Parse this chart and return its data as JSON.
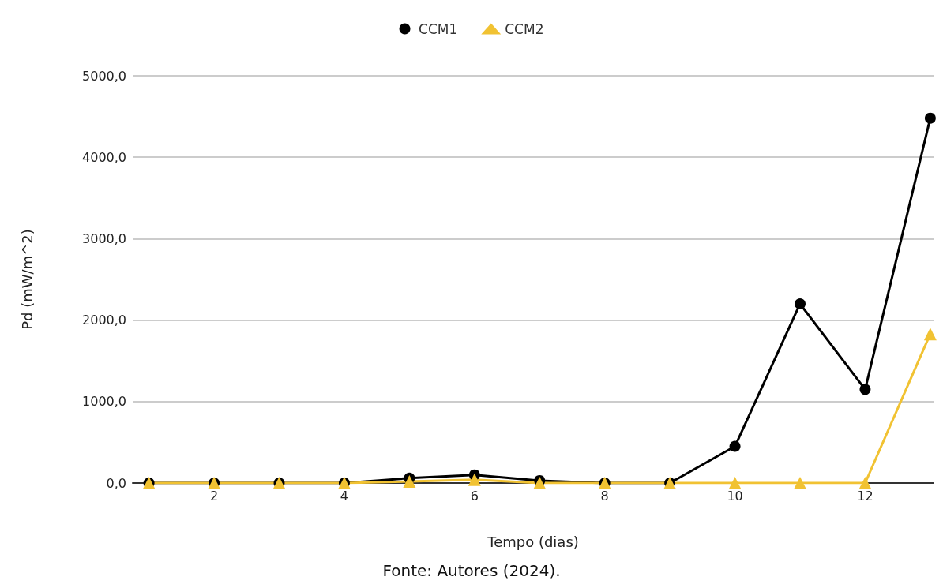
{
  "chart_data": {
    "type": "line",
    "xlabel": "Tempo (dias)",
    "ylabel": "Pd (mW/m^2)",
    "annotations": [
      "Fonte: Autores (2024)."
    ],
    "x": [
      1,
      2,
      3,
      4,
      5,
      6,
      7,
      8,
      9,
      10,
      11,
      12,
      13
    ],
    "series": [
      {
        "name": "CCM1",
        "color": "#000000",
        "marker": "circle",
        "values": [
          0,
          0,
          0,
          0,
          60,
          100,
          30,
          0,
          0,
          450,
          2200,
          1150,
          4480
        ]
      },
      {
        "name": "CCM2",
        "color": "#f1c232",
        "marker": "triangle",
        "values": [
          0,
          0,
          0,
          0,
          20,
          40,
          0,
          0,
          0,
          0,
          0,
          0,
          1830
        ]
      }
    ],
    "xlim": [
      0.75,
      13.05
    ],
    "xticks": [
      2,
      4,
      6,
      8,
      10,
      12
    ],
    "ylim": [
      0,
      5000
    ],
    "yticks": [
      {
        "value": 0,
        "label": "0,0"
      },
      {
        "value": 1000,
        "label": "1000,0"
      },
      {
        "value": 2000,
        "label": "2000,0"
      },
      {
        "value": 3000,
        "label": "3000,0"
      },
      {
        "value": 4000,
        "label": "4000,0"
      },
      {
        "value": 5000,
        "label": "5000,0"
      }
    ],
    "grid": "y",
    "legend": "top",
    "line_style": "solid"
  }
}
